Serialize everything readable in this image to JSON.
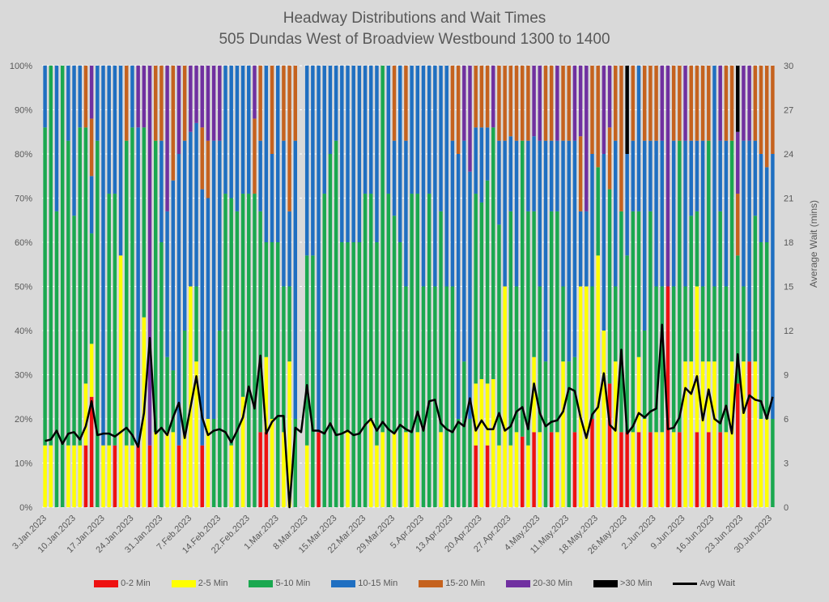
{
  "chart_data": {
    "type": "bar",
    "stacked": true,
    "percent_stacked": true,
    "title": "Headway Distributions and Wait Times",
    "subtitle": "505 Dundas  West of Broadview Westbound 1300 to 1400",
    "xlabel": "",
    "ylabel_left": "",
    "ylabel_right": "Average Wait (mins)",
    "ylim_left": [
      0,
      100
    ],
    "ylim_right": [
      0,
      30
    ],
    "left_ticks": [
      "0%",
      "10%",
      "20%",
      "30%",
      "40%",
      "50%",
      "60%",
      "70%",
      "80%",
      "90%",
      "100%"
    ],
    "right_ticks": [
      "0",
      "3",
      "6",
      "9",
      "12",
      "15",
      "18",
      "21",
      "24",
      "27",
      "30"
    ],
    "x_tick_labels": [
      "3.Jan.2023",
      "10.Jan.2023",
      "17.Jan.2023",
      "24.Jan.2023",
      "31.Jan.2023",
      "7.Feb.2023",
      "14.Feb.2023",
      "22.Feb.2023",
      "1.Mar.2023",
      "8.Mar.2023",
      "15.Mar.2023",
      "22.Mar.2023",
      "29.Mar.2023",
      "5.Apr.2023",
      "13.Apr.2023",
      "20.Apr.2023",
      "27.Apr.2023",
      "4.May.2023",
      "11.May.2023",
      "18.May.2023",
      "26.May.2023",
      "2.Jun.2023",
      "9.Jun.2023",
      "16.Jun.2023",
      "23.Jun.2023",
      "30.Jun.2023"
    ],
    "legend_position": "bottom",
    "grid": true,
    "series": [
      {
        "name": "0-2 Min",
        "color": "#ee1111",
        "type": "bar"
      },
      {
        "name": "2-5 Min",
        "color": "#ffff00",
        "type": "bar"
      },
      {
        "name": "5-10 Min",
        "color": "#1aa84f",
        "type": "bar"
      },
      {
        "name": "10-15 Min",
        "color": "#1f6fc1",
        "type": "bar"
      },
      {
        "name": "15-20 Min",
        "color": "#c5621e",
        "type": "bar"
      },
      {
        "name": "20-30 Min",
        "color": "#7030a0",
        "type": "bar"
      },
      {
        "name": ">30 Min",
        "color": "#000000",
        "type": "bar"
      },
      {
        "name": "Avg Wait",
        "color": "#000000",
        "type": "line",
        "axis": "right"
      }
    ],
    "bars_percent": [
      [
        0,
        14,
        72,
        14,
        0,
        0,
        0
      ],
      [
        0,
        14,
        86,
        0,
        0,
        0,
        0
      ],
      [
        0,
        0,
        67,
        33,
        0,
        0,
        0
      ],
      [
        0,
        0,
        100,
        0,
        0,
        0,
        0
      ],
      [
        0,
        14,
        69,
        17,
        0,
        0,
        0
      ],
      [
        0,
        14,
        52,
        34,
        0,
        0,
        0
      ],
      [
        0,
        14,
        72,
        14,
        0,
        0,
        0
      ],
      [
        14,
        14,
        58,
        0,
        14,
        0,
        0
      ],
      [
        25,
        12,
        25,
        13,
        13,
        12,
        0
      ],
      [
        0,
        0,
        83,
        17,
        0,
        0,
        0
      ],
      [
        0,
        14,
        0,
        86,
        0,
        0,
        0
      ],
      [
        0,
        14,
        57,
        29,
        0,
        0,
        0
      ],
      [
        14,
        0,
        57,
        29,
        0,
        0,
        0
      ],
      [
        0,
        57,
        0,
        43,
        0,
        0,
        0
      ],
      [
        0,
        14,
        69,
        0,
        17,
        0,
        0
      ],
      [
        0,
        14,
        72,
        14,
        0,
        0,
        0
      ],
      [
        14,
        0,
        0,
        72,
        0,
        14,
        0
      ],
      [
        0,
        43,
        43,
        0,
        0,
        14,
        0
      ],
      [
        14,
        0,
        0,
        0,
        0,
        86,
        0
      ],
      [
        0,
        17,
        66,
        0,
        17,
        0,
        0
      ],
      [
        0,
        0,
        60,
        23,
        17,
        0,
        0
      ],
      [
        0,
        17,
        17,
        33,
        0,
        33,
        0
      ],
      [
        0,
        17,
        14,
        43,
        26,
        0,
        0
      ],
      [
        14,
        0,
        0,
        66,
        0,
        20,
        0
      ],
      [
        0,
        17,
        23,
        43,
        17,
        0,
        0
      ],
      [
        0,
        50,
        0,
        35,
        0,
        15,
        0
      ],
      [
        0,
        33,
        17,
        37,
        0,
        13,
        0
      ],
      [
        14,
        0,
        0,
        58,
        14,
        14,
        0
      ],
      [
        0,
        20,
        0,
        50,
        13,
        17,
        0
      ],
      [
        0,
        0,
        20,
        63,
        0,
        17,
        0
      ],
      [
        0,
        0,
        40,
        43,
        0,
        17,
        0
      ],
      [
        0,
        0,
        71,
        29,
        0,
        0,
        0
      ],
      [
        0,
        14,
        56,
        30,
        0,
        0,
        0
      ],
      [
        0,
        0,
        67,
        33,
        0,
        0,
        0
      ],
      [
        0,
        25,
        46,
        29,
        0,
        0,
        0
      ],
      [
        0,
        0,
        71,
        29,
        0,
        0,
        0
      ],
      [
        0,
        0,
        71,
        0,
        17,
        12,
        0
      ],
      [
        17,
        0,
        50,
        16,
        17,
        0,
        0
      ],
      [
        17,
        17,
        26,
        40,
        0,
        0,
        0
      ],
      [
        0,
        20,
        40,
        20,
        20,
        0,
        0
      ],
      [
        0,
        0,
        60,
        40,
        0,
        0,
        0
      ],
      [
        0,
        17,
        33,
        33,
        17,
        0,
        0
      ],
      [
        0,
        33,
        17,
        17,
        33,
        0,
        0
      ],
      [
        0,
        0,
        20,
        63,
        17,
        0,
        0
      ],
      [
        0,
        0,
        0,
        0,
        0,
        0,
        0
      ],
      [
        0,
        14,
        43,
        43,
        0,
        0,
        0
      ],
      [
        0,
        0,
        57,
        43,
        0,
        0,
        0
      ],
      [
        17,
        0,
        0,
        83,
        0,
        0,
        0
      ],
      [
        0,
        0,
        71,
        29,
        0,
        0,
        0
      ],
      [
        0,
        0,
        80,
        20,
        0,
        0,
        0
      ],
      [
        0,
        0,
        83,
        17,
        0,
        0,
        0
      ],
      [
        0,
        0,
        60,
        40,
        0,
        0,
        0
      ],
      [
        0,
        17,
        43,
        40,
        0,
        0,
        0
      ],
      [
        0,
        0,
        60,
        40,
        0,
        0,
        0
      ],
      [
        0,
        0,
        60,
        40,
        0,
        0,
        0
      ],
      [
        0,
        0,
        71,
        29,
        0,
        0,
        0
      ],
      [
        0,
        20,
        51,
        29,
        0,
        0,
        0
      ],
      [
        0,
        14,
        46,
        40,
        0,
        0,
        0
      ],
      [
        0,
        17,
        83,
        0,
        0,
        0,
        0
      ],
      [
        0,
        0,
        71,
        29,
        0,
        0,
        0
      ],
      [
        0,
        17,
        49,
        17,
        17,
        0,
        0
      ],
      [
        0,
        0,
        60,
        40,
        0,
        0,
        0
      ],
      [
        0,
        17,
        33,
        33,
        17,
        0,
        0
      ],
      [
        0,
        0,
        71,
        29,
        0,
        0,
        0
      ],
      [
        0,
        17,
        54,
        29,
        0,
        0,
        0
      ],
      [
        0,
        0,
        50,
        50,
        0,
        0,
        0
      ],
      [
        0,
        0,
        71,
        29,
        0,
        0,
        0
      ],
      [
        0,
        0,
        50,
        50,
        0,
        0,
        0
      ],
      [
        0,
        17,
        50,
        33,
        0,
        0,
        0
      ],
      [
        0,
        0,
        50,
        50,
        0,
        0,
        0
      ],
      [
        0,
        0,
        50,
        33,
        17,
        0,
        0
      ],
      [
        0,
        0,
        20,
        60,
        20,
        0,
        0
      ],
      [
        0,
        0,
        33,
        50,
        0,
        17,
        0
      ],
      [
        0,
        0,
        20,
        56,
        0,
        24,
        0
      ],
      [
        14,
        14,
        43,
        15,
        14,
        0,
        0
      ],
      [
        0,
        29,
        40,
        17,
        14,
        0,
        0
      ],
      [
        14,
        14,
        46,
        12,
        14,
        0,
        0
      ],
      [
        0,
        29,
        57,
        0,
        0,
        14,
        0
      ],
      [
        0,
        14,
        50,
        19,
        17,
        0,
        0
      ],
      [
        0,
        50,
        0,
        33,
        17,
        0,
        0
      ],
      [
        0,
        14,
        53,
        17,
        16,
        0,
        0
      ],
      [
        0,
        17,
        33,
        33,
        17,
        0,
        0
      ],
      [
        16,
        0,
        67,
        0,
        17,
        0,
        0
      ],
      [
        0,
        14,
        53,
        16,
        17,
        0,
        0
      ],
      [
        17,
        17,
        33,
        17,
        0,
        16,
        0
      ],
      [
        0,
        17,
        33,
        33,
        0,
        17,
        0
      ],
      [
        0,
        0,
        33,
        50,
        17,
        0,
        0
      ],
      [
        17,
        0,
        50,
        16,
        17,
        0,
        0
      ],
      [
        0,
        17,
        50,
        16,
        0,
        17,
        0
      ],
      [
        0,
        33,
        17,
        33,
        17,
        0,
        0
      ],
      [
        0,
        0,
        33,
        50,
        17,
        0,
        0
      ],
      [
        17,
        0,
        17,
        49,
        0,
        17,
        0
      ],
      [
        0,
        50,
        0,
        17,
        17,
        16,
        0
      ],
      [
        0,
        50,
        0,
        17,
        0,
        33,
        0
      ],
      [
        20,
        0,
        30,
        30,
        20,
        0,
        0
      ],
      [
        0,
        57,
        20,
        0,
        23,
        0,
        0
      ],
      [
        0,
        40,
        0,
        40,
        0,
        20,
        0
      ],
      [
        28,
        0,
        44,
        0,
        14,
        14,
        0
      ],
      [
        0,
        33,
        17,
        33,
        17,
        0,
        0
      ],
      [
        17,
        0,
        50,
        0,
        33,
        0,
        0
      ],
      [
        17,
        0,
        40,
        23,
        0,
        0,
        20
      ],
      [
        0,
        17,
        50,
        16,
        17,
        0,
        0
      ],
      [
        17,
        17,
        33,
        33,
        0,
        0,
        0
      ],
      [
        0,
        20,
        20,
        43,
        17,
        0,
        0
      ],
      [
        17,
        0,
        50,
        16,
        17,
        0,
        0
      ],
      [
        0,
        17,
        33,
        33,
        17,
        0,
        0
      ],
      [
        0,
        17,
        33,
        33,
        0,
        17,
        0
      ],
      [
        50,
        0,
        0,
        0,
        0,
        50,
        0
      ],
      [
        0,
        17,
        33,
        33,
        17,
        0,
        0
      ],
      [
        17,
        0,
        66,
        0,
        17,
        0,
        0
      ],
      [
        0,
        33,
        17,
        33,
        0,
        17,
        0
      ],
      [
        0,
        33,
        33,
        17,
        17,
        0,
        0
      ],
      [
        17,
        33,
        17,
        16,
        17,
        0,
        0
      ],
      [
        0,
        33,
        17,
        33,
        17,
        0,
        0
      ],
      [
        17,
        16,
        50,
        0,
        17,
        0,
        0
      ],
      [
        0,
        33,
        17,
        50,
        0,
        0,
        0
      ],
      [
        17,
        0,
        50,
        16,
        0,
        17,
        0
      ],
      [
        0,
        17,
        33,
        33,
        17,
        0,
        0
      ],
      [
        0,
        33,
        50,
        0,
        17,
        0,
        0
      ],
      [
        28,
        0,
        29,
        0,
        14,
        14,
        15
      ],
      [
        0,
        33,
        17,
        33,
        0,
        17,
        0
      ],
      [
        33,
        0,
        0,
        50,
        0,
        17,
        0
      ],
      [
        0,
        33,
        33,
        17,
        17,
        0,
        0
      ],
      [
        0,
        20,
        40,
        20,
        20,
        0,
        0
      ],
      [
        0,
        20,
        40,
        17,
        23,
        0,
        0
      ],
      [
        0,
        0,
        20,
        60,
        20,
        0,
        0
      ]
    ],
    "avg_wait_mins": [
      4.5,
      4.6,
      5.2,
      4.3,
      5.0,
      5.1,
      4.6,
      5.5,
      7.2,
      4.9,
      5.0,
      5.0,
      4.8,
      5.1,
      5.4,
      4.9,
      4.1,
      6.4,
      11.5,
      5.0,
      5.4,
      4.9,
      6.1,
      7.1,
      4.7,
      6.8,
      8.9,
      6.1,
      4.9,
      5.2,
      5.3,
      5.1,
      4.4,
      5.2,
      6.1,
      8.2,
      6.7,
      10.3,
      5.0,
      5.8,
      6.2,
      6.2,
      0.0,
      5.4,
      5.1,
      8.3,
      5.2,
      5.2,
      5.0,
      5.7,
      4.9,
      5.0,
      5.2,
      4.9,
      5.0,
      5.6,
      6.0,
      5.2,
      5.8,
      5.3,
      5.0,
      5.6,
      5.3,
      5.1,
      6.5,
      5.2,
      7.2,
      7.3,
      5.7,
      5.3,
      5.1,
      5.8,
      5.5,
      7.4,
      5.2,
      5.9,
      5.3,
      5.3,
      6.4,
      5.2,
      5.5,
      6.5,
      6.8,
      5.3,
      8.4,
      6.4,
      5.5,
      5.8,
      5.9,
      6.5,
      8.1,
      7.9,
      6.1,
      4.7,
      6.3,
      6.8,
      9.1,
      5.6,
      5.2,
      10.7,
      5.0,
      5.5,
      6.4,
      6.1,
      6.5,
      6.7,
      12.4,
      5.3,
      5.4,
      6.1,
      8.1,
      7.7,
      8.9,
      5.9,
      8.0,
      6.0,
      5.7,
      6.9,
      5.0,
      10.4,
      6.4,
      7.6,
      7.3,
      7.2,
      6.0,
      7.5
    ]
  }
}
